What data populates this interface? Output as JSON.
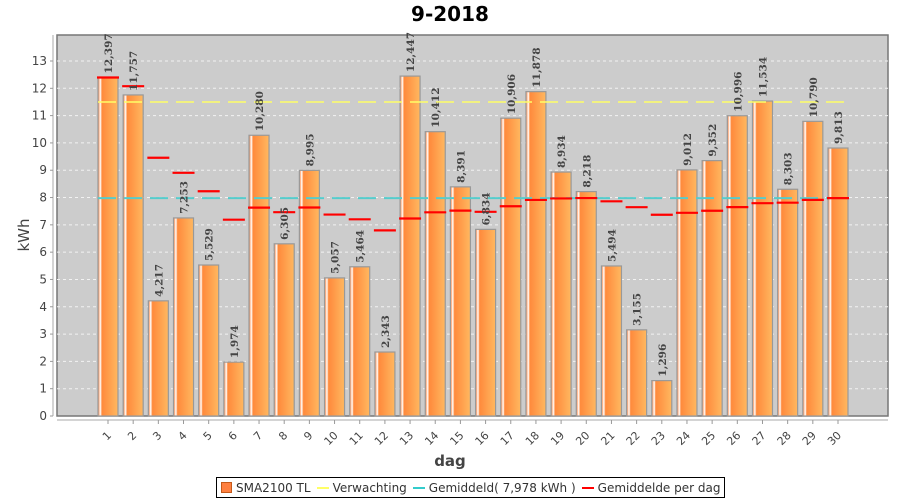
{
  "chart_data": {
    "type": "bar",
    "title": "9-2018",
    "xlabel": "dag",
    "ylabel": "kWh",
    "ylim": [
      0,
      13.9
    ],
    "yticks": [
      0,
      1,
      2,
      3,
      4,
      5,
      6,
      7,
      8,
      9,
      10,
      11,
      12,
      13
    ],
    "grid": true,
    "legend_position": "bottom",
    "categories": [
      "1",
      "2",
      "3",
      "4",
      "5",
      "6",
      "7",
      "8",
      "9",
      "10",
      "11",
      "12",
      "13",
      "14",
      "15",
      "16",
      "17",
      "18",
      "19",
      "20",
      "21",
      "22",
      "23",
      "24",
      "25",
      "26",
      "27",
      "28",
      "29",
      "30"
    ],
    "series": [
      {
        "name": "SMA2100 TL",
        "type": "bar",
        "color": "#ff8c40",
        "values": [
          12.397,
          11.757,
          4.217,
          7.253,
          5.529,
          1.974,
          10.28,
          6.305,
          8.995,
          5.057,
          5.464,
          2.343,
          12.447,
          10.412,
          8.391,
          6.834,
          10.906,
          11.878,
          8.934,
          8.218,
          5.494,
          3.155,
          1.296,
          9.012,
          9.352,
          10.996,
          11.534,
          8.303,
          10.79,
          9.813
        ],
        "labels": [
          "12,397",
          "11,757",
          "4,217",
          "7,253",
          "5,529",
          "1,974",
          "10,280",
          "6,305",
          "8,995",
          "5,057",
          "5,464",
          "2,343",
          "12,447",
          "10,412",
          "8,391",
          "6,834",
          "10,906",
          "11,878",
          "8,934",
          "8,218",
          "5,494",
          "3,155",
          "1,296",
          "9,012",
          "9,352",
          "10,996",
          "11,534",
          "8,303",
          "10,790",
          "9,813"
        ]
      },
      {
        "name": "Verwachting",
        "type": "hline",
        "color": "#ffff66",
        "value": 11.5
      },
      {
        "name": "Gemiddeld( 7,978 kWh )",
        "type": "hline",
        "color": "#55cccc",
        "value": 7.978
      },
      {
        "name": "Gemiddelde per dag",
        "type": "marker",
        "color": "#ff0000",
        "values": [
          12.397,
          12.077,
          9.457,
          8.906,
          8.231,
          7.188,
          7.63,
          7.464,
          7.634,
          7.376,
          7.203,
          6.798,
          7.232,
          7.459,
          7.521,
          7.478,
          7.68,
          7.913,
          7.967,
          7.98,
          7.861,
          7.647,
          7.371,
          7.44,
          7.516,
          7.65,
          7.794,
          7.812,
          7.915,
          7.978
        ]
      }
    ]
  },
  "legend": {
    "items": [
      {
        "label": "SMA2100 TL",
        "color": "#ff8040",
        "kind": "box"
      },
      {
        "label": "Verwachting",
        "color": "#ffff66",
        "kind": "line"
      },
      {
        "label": "Gemiddeld( 7,978 kWh )",
        "color": "#33cccc",
        "kind": "line"
      },
      {
        "label": "Gemiddelde per dag",
        "color": "#ff0000",
        "kind": "line"
      }
    ]
  }
}
